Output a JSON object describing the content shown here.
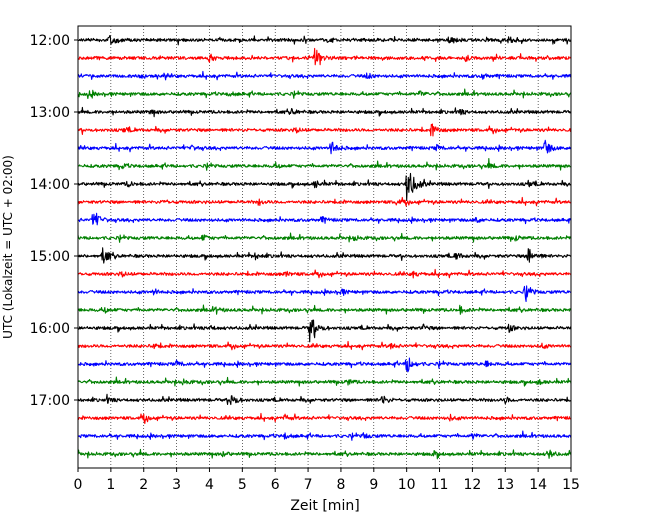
{
  "chart_data": {
    "type": "line",
    "title": "",
    "xlabel": "Zeit  [min]",
    "ylabel": "UTC (Lokalzeit = UTC + 02:00)",
    "xlim": [
      0,
      15
    ],
    "x_ticks": [
      "0",
      "1",
      "2",
      "3",
      "4",
      "5",
      "6",
      "7",
      "8",
      "9",
      "10",
      "11",
      "12",
      "13",
      "14",
      "15"
    ],
    "y_ticks": [
      "12:00",
      "13:00",
      "14:00",
      "15:00",
      "16:00",
      "17:00"
    ],
    "grid": "vertical-dotted",
    "colors": [
      "#000000",
      "#ff0000",
      "#0000ff",
      "#008000"
    ],
    "rows": [
      {
        "time": "12:00",
        "events": [
          {
            "t": 0.95,
            "a": 8
          },
          {
            "t": 11.3,
            "a": 5
          },
          {
            "t": 13.1,
            "a": 3.5
          },
          {
            "t": 7.6,
            "a": 3
          }
        ]
      },
      {
        "time": "12:15",
        "events": [
          {
            "t": 7.2,
            "a": 10
          },
          {
            "t": 4.0,
            "a": 3
          },
          {
            "t": 11.8,
            "a": 3
          }
        ]
      },
      {
        "time": "12:30",
        "events": [
          {
            "t": 12.3,
            "a": 3
          },
          {
            "t": 1.9,
            "a": 2.5
          },
          {
            "t": 8.8,
            "a": 3
          }
        ]
      },
      {
        "time": "12:45",
        "events": [
          {
            "t": 0.3,
            "a": 3
          },
          {
            "t": 4.6,
            "a": 2.5
          },
          {
            "t": 10.4,
            "a": 3
          }
        ]
      },
      {
        "time": "13:00",
        "events": [
          {
            "t": 6.5,
            "a": 3
          },
          {
            "t": 11.6,
            "a": 3
          },
          {
            "t": 2.2,
            "a": 2.5
          }
        ]
      },
      {
        "time": "13:15",
        "events": [
          {
            "t": 10.75,
            "a": 7
          },
          {
            "t": 6.6,
            "a": 3
          },
          {
            "t": 1.4,
            "a": 2.5
          }
        ]
      },
      {
        "time": "13:30",
        "events": [
          {
            "t": 7.7,
            "a": 8
          },
          {
            "t": 14.2,
            "a": 8
          },
          {
            "t": 3.4,
            "a": 3
          },
          {
            "t": 10.9,
            "a": 3
          }
        ]
      },
      {
        "time": "13:45",
        "events": [
          {
            "t": 1.3,
            "a": 3
          },
          {
            "t": 6.0,
            "a": 2.5
          },
          {
            "t": 12.5,
            "a": 3
          }
        ]
      },
      {
        "time": "14:00",
        "events": [
          {
            "t": 10.0,
            "a": 18
          },
          {
            "t": 7.2,
            "a": 4
          },
          {
            "t": 1.5,
            "a": 3
          },
          {
            "t": 13.7,
            "a": 3
          }
        ]
      },
      {
        "time": "14:15",
        "events": [
          {
            "t": 5.5,
            "a": 3
          },
          {
            "t": 9.7,
            "a": 3
          },
          {
            "t": 2.6,
            "a": 2.5
          }
        ]
      },
      {
        "time": "14:30",
        "events": [
          {
            "t": 0.45,
            "a": 10
          },
          {
            "t": 7.4,
            "a": 3
          },
          {
            "t": 12.1,
            "a": 3
          }
        ]
      },
      {
        "time": "14:45",
        "events": [
          {
            "t": 3.8,
            "a": 3
          },
          {
            "t": 8.4,
            "a": 3
          },
          {
            "t": 13.3,
            "a": 2.5
          }
        ]
      },
      {
        "time": "15:00",
        "events": [
          {
            "t": 0.75,
            "a": 9
          },
          {
            "t": 13.7,
            "a": 9
          },
          {
            "t": 11.5,
            "a": 4
          },
          {
            "t": 5.4,
            "a": 3
          }
        ]
      },
      {
        "time": "15:15",
        "events": [
          {
            "t": 1.3,
            "a": 3
          },
          {
            "t": 6.3,
            "a": 3
          },
          {
            "t": 10.2,
            "a": 3
          }
        ]
      },
      {
        "time": "15:30",
        "events": [
          {
            "t": 13.6,
            "a": 7
          },
          {
            "t": 2.3,
            "a": 3
          },
          {
            "t": 8.0,
            "a": 3
          }
        ]
      },
      {
        "time": "15:45",
        "events": [
          {
            "t": 11.6,
            "a": 4
          },
          {
            "t": 4.2,
            "a": 3
          },
          {
            "t": 0.8,
            "a": 2.5
          }
        ]
      },
      {
        "time": "16:00",
        "events": [
          {
            "t": 7.05,
            "a": 13
          },
          {
            "t": 13.1,
            "a": 4
          },
          {
            "t": 4.0,
            "a": 3
          },
          {
            "t": 10.5,
            "a": 3
          }
        ]
      },
      {
        "time": "16:15",
        "events": [
          {
            "t": 2.3,
            "a": 3
          },
          {
            "t": 9.5,
            "a": 3
          },
          {
            "t": 14.1,
            "a": 2.5
          }
        ]
      },
      {
        "time": "16:30",
        "events": [
          {
            "t": 10.0,
            "a": 9
          },
          {
            "t": 3.0,
            "a": 3
          },
          {
            "t": 12.4,
            "a": 3
          }
        ]
      },
      {
        "time": "16:45",
        "events": [
          {
            "t": 3.2,
            "a": 3
          },
          {
            "t": 8.2,
            "a": 3
          },
          {
            "t": 14.0,
            "a": 2.5
          }
        ]
      },
      {
        "time": "17:00",
        "events": [
          {
            "t": 4.65,
            "a": 7
          },
          {
            "t": 9.25,
            "a": 5
          },
          {
            "t": 0.9,
            "a": 2.5
          },
          {
            "t": 13.0,
            "a": 3
          }
        ]
      },
      {
        "time": "17:15",
        "events": [
          {
            "t": 6.3,
            "a": 3
          },
          {
            "t": 11.3,
            "a": 3
          },
          {
            "t": 2.0,
            "a": 2.5
          }
        ]
      },
      {
        "time": "17:30",
        "events": [
          {
            "t": 6.3,
            "a": 3
          },
          {
            "t": 8.7,
            "a": 3
          },
          {
            "t": 12.0,
            "a": 3
          }
        ]
      },
      {
        "time": "17:45",
        "events": [
          {
            "t": 14.3,
            "a": 5
          },
          {
            "t": 10.8,
            "a": 3
          },
          {
            "t": 4.4,
            "a": 2.5
          }
        ]
      }
    ]
  }
}
